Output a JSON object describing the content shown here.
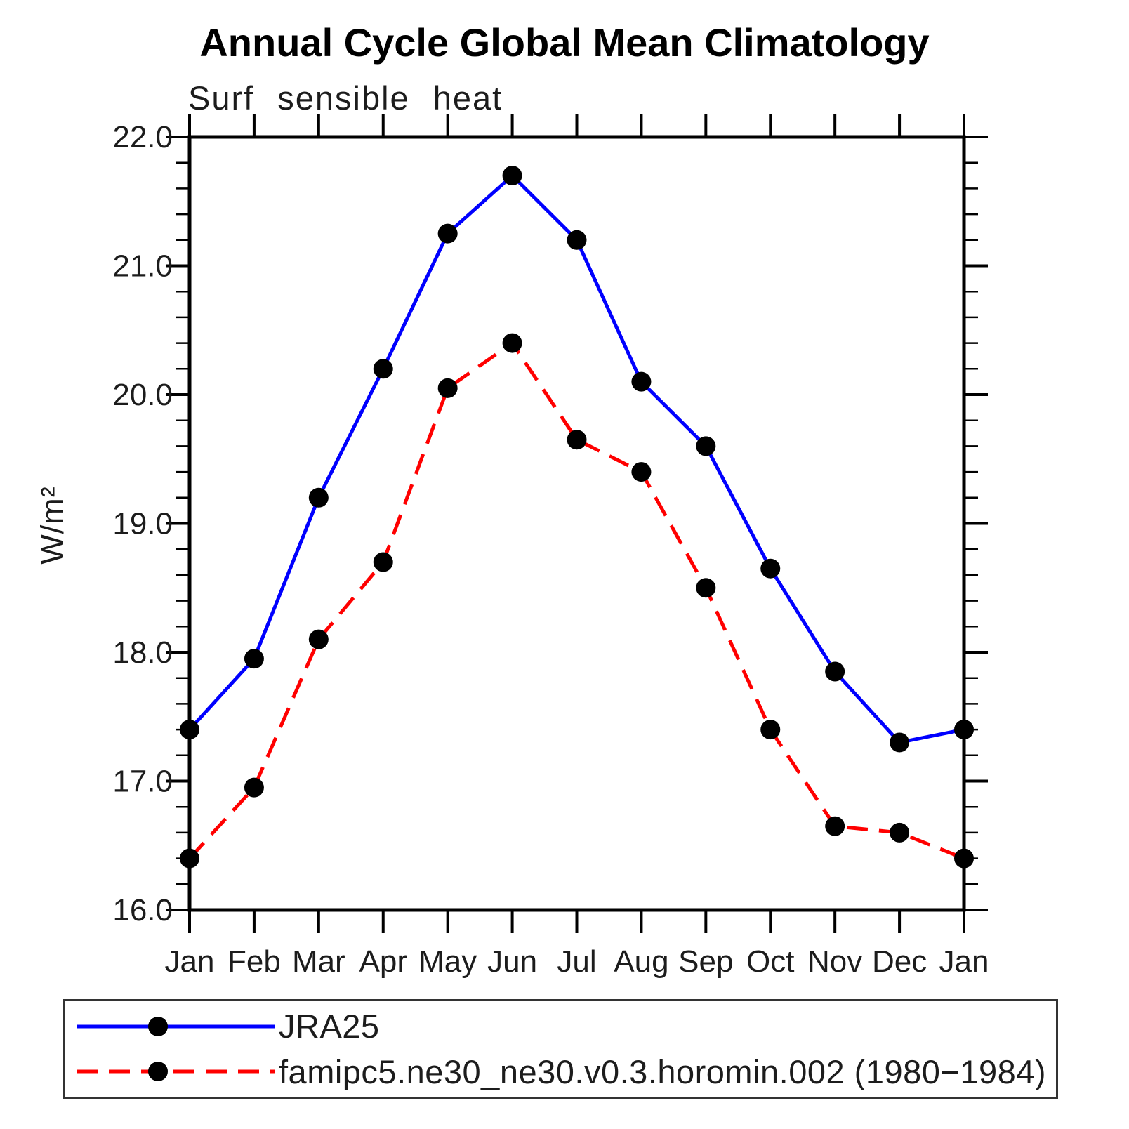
{
  "title": "Annual Cycle Global Mean Climatology",
  "subtitle": "Surf sensible heat",
  "y_axis_label": "W/m²",
  "chart_data": {
    "type": "line",
    "x": [
      "Jan",
      "Feb",
      "Mar",
      "Apr",
      "May",
      "Jun",
      "Jul",
      "Aug",
      "Sep",
      "Oct",
      "Nov",
      "Dec",
      "Jan"
    ],
    "series": [
      {
        "name": "JRA25",
        "color": "#0000ff",
        "line_style": "solid",
        "marker": "filled-circle",
        "marker_color": "#000000",
        "values": [
          17.4,
          17.95,
          19.2,
          20.2,
          21.25,
          21.7,
          21.2,
          20.1,
          19.6,
          18.65,
          17.85,
          17.3,
          17.4
        ]
      },
      {
        "name": "famipc5.ne30_ne30.v0.3.horomin.002 (1980−1984)",
        "color": "#ff0000",
        "line_style": "dashed",
        "marker": "filled-circle",
        "marker_color": "#000000",
        "values": [
          16.4,
          16.95,
          18.1,
          18.7,
          20.05,
          20.4,
          19.65,
          19.4,
          18.5,
          17.4,
          16.65,
          16.6,
          16.4
        ]
      }
    ],
    "ylim": [
      16.0,
      22.0
    ],
    "ytick_step": 1.0,
    "ytick_minor_step": 0.2,
    "ytick_labels": [
      "16.0",
      "17.0",
      "18.0",
      "19.0",
      "20.0",
      "21.0",
      "22.0"
    ],
    "grid": false,
    "legend_position": "bottom-left"
  }
}
